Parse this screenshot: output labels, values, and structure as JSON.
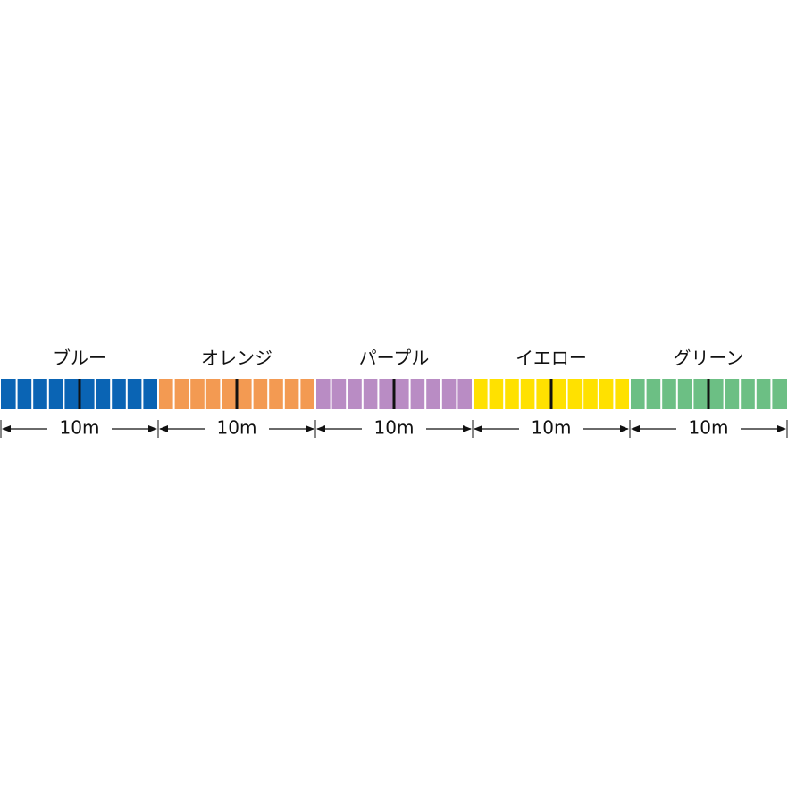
{
  "segments": [
    {
      "name": "ブルー",
      "color": "#0a64b4",
      "length": "10m"
    },
    {
      "name": "オレンジ",
      "color": "#f39a52",
      "length": "10m"
    },
    {
      "name": "パープル",
      "color": "#b98cc4",
      "length": "10m"
    },
    {
      "name": "イエロー",
      "color": "#ffe100",
      "length": "10m"
    },
    {
      "name": "グリーン",
      "color": "#6cbf84",
      "length": "10m"
    }
  ]
}
